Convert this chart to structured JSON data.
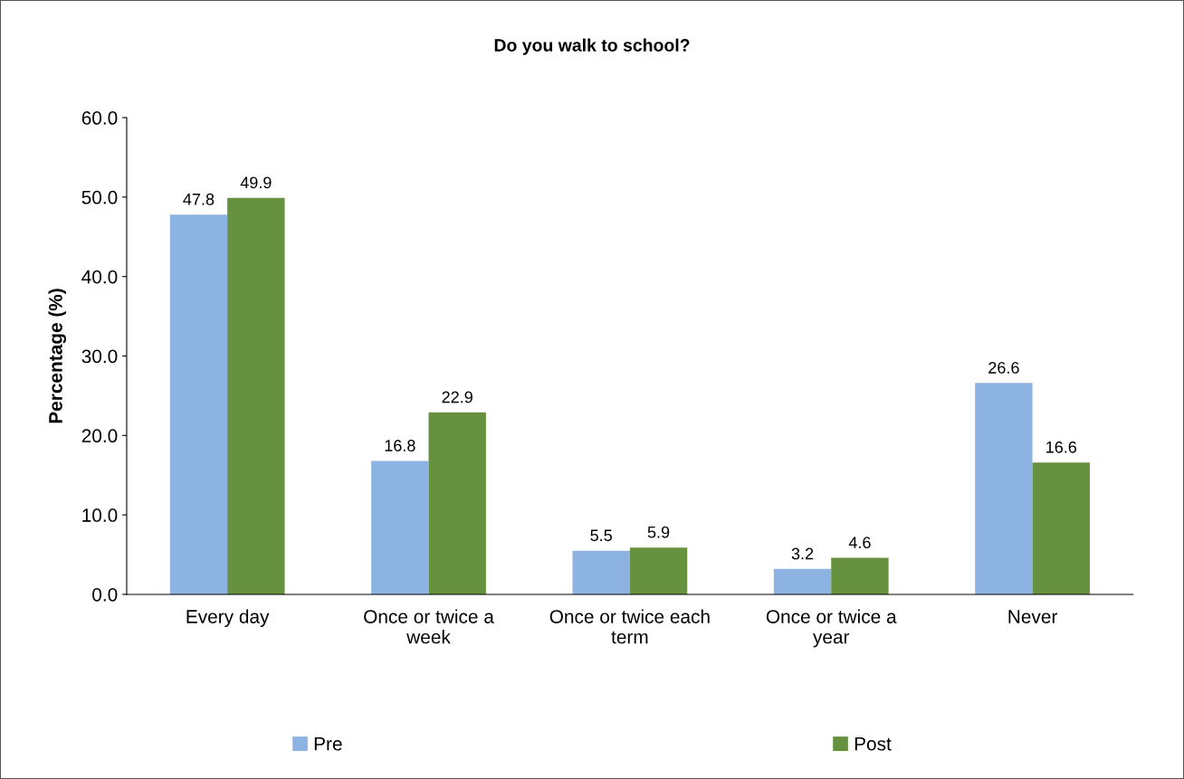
{
  "chart_data": {
    "type": "bar",
    "title": "Do you walk to school?",
    "ylabel": "Percentage (%)",
    "categories": [
      "Every day",
      "Once or twice a\nweek",
      "Once or twice each\nterm",
      "Once or twice a\nyear",
      "Never"
    ],
    "series": [
      {
        "name": "Pre",
        "color": "#8db3e2",
        "values": [
          47.8,
          16.8,
          5.5,
          3.2,
          26.6
        ]
      },
      {
        "name": "Post",
        "color": "#66913f",
        "values": [
          49.9,
          22.9,
          5.9,
          4.6,
          16.6
        ]
      }
    ],
    "ylim": [
      0,
      60
    ],
    "yticks": [
      {
        "value": 0,
        "label": "0.0"
      },
      {
        "value": 10,
        "label": "10.0"
      },
      {
        "value": 20,
        "label": "20.0"
      },
      {
        "value": 30,
        "label": "30.0"
      },
      {
        "value": 40,
        "label": "40.0"
      },
      {
        "value": 50,
        "label": "50.0"
      },
      {
        "value": 60,
        "label": "60.0"
      }
    ],
    "data_labels": true,
    "legend": "bottom",
    "grid": false
  }
}
